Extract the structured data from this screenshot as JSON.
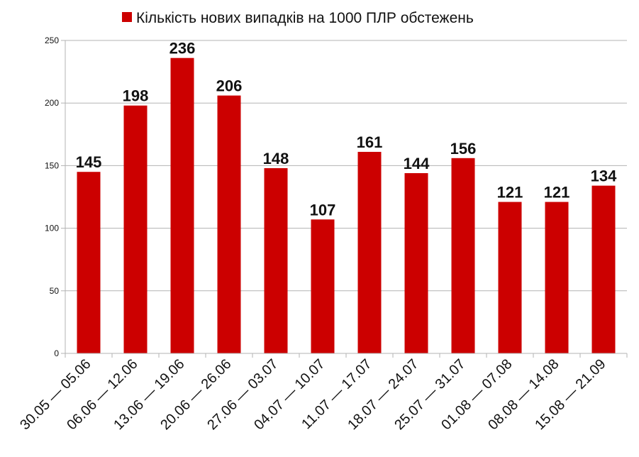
{
  "colors": {
    "bar": "#cc0000",
    "grid": "#b3b3b3",
    "axis": "#b3b3b3",
    "text": "#111111"
  },
  "legend": {
    "position": "top-center"
  },
  "chart_data": {
    "type": "bar",
    "categories": [
      "30.05 — 05.06",
      "06.06 — 12.06",
      "13.06 — 19.06",
      "20.06 — 26.06",
      "27.06 — 03.07",
      "04.07 — 10.07",
      "11.07 — 17.07",
      "18.07 — 24.07",
      "25.07 — 31.07",
      "01.08 — 07.08",
      "08.08 — 14.08",
      "15.08 — 21.09"
    ],
    "series": [
      {
        "name": "Кількість нових випадків на 1000 ПЛР обстежень",
        "values": [
          145,
          198,
          236,
          206,
          148,
          107,
          161,
          144,
          156,
          121,
          121,
          134
        ]
      }
    ],
    "ylim": [
      0,
      250
    ],
    "yticks": [
      0,
      50,
      100,
      150,
      200,
      250
    ],
    "grid": true,
    "data_labels": true,
    "xlabel": "",
    "ylabel": ""
  }
}
